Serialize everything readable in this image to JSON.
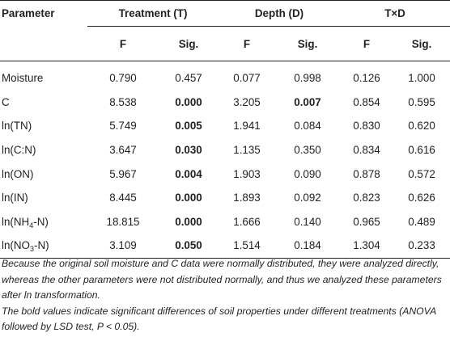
{
  "table": {
    "header": {
      "parameter": "Parameter",
      "groups": [
        "Treatment (T)",
        "Depth (D)",
        "T×D"
      ],
      "sub": [
        "F",
        "Sig.",
        "F",
        "Sig.",
        "F",
        "Sig."
      ]
    },
    "rows": [
      {
        "param": "Moisture",
        "param_sub": "",
        "param_tail": "",
        "t_f": "0.790",
        "t_sig": "0.457",
        "t_sig_bold": false,
        "d_f": "0.077",
        "d_sig": "0.998",
        "d_sig_bold": false,
        "td_f": "0.126",
        "td_sig": "1.000"
      },
      {
        "param": "C",
        "param_sub": "",
        "param_tail": "",
        "t_f": "8.538",
        "t_sig": "0.000",
        "t_sig_bold": true,
        "d_f": "3.205",
        "d_sig": "0.007",
        "d_sig_bold": true,
        "td_f": "0.854",
        "td_sig": "0.595"
      },
      {
        "param": "ln(TN)",
        "param_sub": "",
        "param_tail": "",
        "t_f": "5.749",
        "t_sig": "0.005",
        "t_sig_bold": true,
        "d_f": "1.941",
        "d_sig": "0.084",
        "d_sig_bold": false,
        "td_f": "0.830",
        "td_sig": "0.620"
      },
      {
        "param": "ln(C:N)",
        "param_sub": "",
        "param_tail": "",
        "t_f": "3.647",
        "t_sig": "0.030",
        "t_sig_bold": true,
        "d_f": "1.135",
        "d_sig": "0.350",
        "d_sig_bold": false,
        "td_f": "0.834",
        "td_sig": "0.616"
      },
      {
        "param": "ln(ON)",
        "param_sub": "",
        "param_tail": "",
        "t_f": "5.967",
        "t_sig": "0.004",
        "t_sig_bold": true,
        "d_f": "1.903",
        "d_sig": "0.090",
        "d_sig_bold": false,
        "td_f": "0.878",
        "td_sig": "0.572"
      },
      {
        "param": "ln(IN)",
        "param_sub": "",
        "param_tail": "",
        "t_f": "8.445",
        "t_sig": "0.000",
        "t_sig_bold": true,
        "d_f": "1.893",
        "d_sig": "0.092",
        "d_sig_bold": false,
        "td_f": "0.823",
        "td_sig": "0.626"
      },
      {
        "param": "ln(NH",
        "param_sub": "4",
        "param_tail": "-N)",
        "t_f": "18.815",
        "t_sig": "0.000",
        "t_sig_bold": true,
        "d_f": "1.666",
        "d_sig": "0.140",
        "d_sig_bold": false,
        "td_f": "0.965",
        "td_sig": "0.489"
      },
      {
        "param": "ln(NO",
        "param_sub": "3",
        "param_tail": "-N)",
        "t_f": "3.109",
        "t_sig": "0.050",
        "t_sig_bold": true,
        "d_f": "1.514",
        "d_sig": "0.184",
        "d_sig_bold": false,
        "td_f": "1.304",
        "td_sig": "0.233"
      }
    ]
  },
  "notes": {
    "note1": "Because the original soil moisture and C data were normally distributed, they were analyzed directly, whereas the other parameters were not distributed normally, and thus we analyzed these parameters after ln transformation.",
    "note2": "The bold values indicate significant differences of soil properties under different treatments (ANOVA followed by LSD test, P < 0.05)."
  }
}
